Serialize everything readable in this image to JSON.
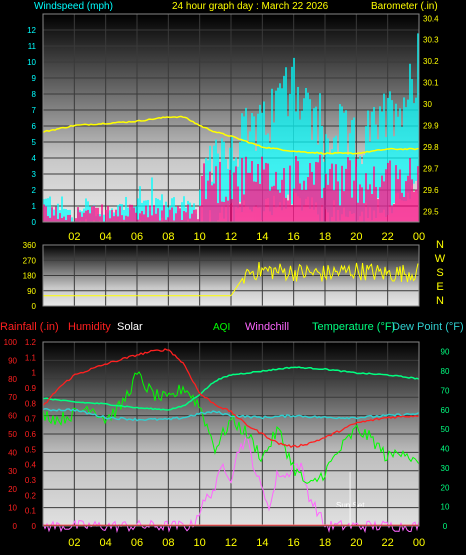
{
  "header": {
    "title": "24 hour graph day : March 22 2026",
    "windspeed_label": "Windspeed (mph)",
    "barometer_label": "Barometer (.in)"
  },
  "mid_labels": {
    "rainfall": "Rainfall (.in)",
    "humidity": "Humidity",
    "solar": "Solar",
    "aqi": "AQI",
    "windchill": "Windchill",
    "temperature": "Temperature (°F)",
    "dew_point": "Dew Point (°F)"
  },
  "annotations": {
    "sunset": "Sun Set"
  },
  "colors": {
    "windspeed": "#00ffff",
    "gust": "#ff0080",
    "barometer": "#ffff00",
    "direction": "#ffff00",
    "humidity": "#ff2020",
    "temperature": "#00ff80",
    "dew_point": "#30d0d0",
    "aqi": "#00ff00",
    "windchill": "#ff66ff",
    "rain": "#ff0000",
    "solar": "#ffffff"
  },
  "chart_data": [
    {
      "type": "line",
      "title": "24 hour graph day : March 22 2026",
      "xlabel": "",
      "x_ticks": [
        "02",
        "04",
        "06",
        "08",
        "10",
        "12",
        "14",
        "16",
        "18",
        "20",
        "22",
        "00"
      ],
      "ylabel": "Windspeed (mph)",
      "y_ticks": [
        0,
        1,
        2,
        3,
        4,
        5,
        6,
        7,
        8,
        9,
        10,
        11,
        12
      ],
      "ylim": [
        0,
        13
      ],
      "y2label": "Barometer (.in)",
      "y2_ticks": [
        "29.5",
        "29.6",
        "29.7",
        "29.8",
        "29.9",
        "30",
        "30.1",
        "30.2",
        "30.3",
        "30.4"
      ],
      "y2lim": [
        29.45,
        30.42
      ],
      "series": [
        {
          "name": "Windspeed (mph)",
          "x": [
            0,
            1,
            2,
            3,
            4,
            5,
            6,
            7,
            8,
            9,
            10,
            11,
            12,
            13,
            14,
            15,
            16,
            17,
            18,
            19,
            20,
            21,
            22,
            23,
            24
          ],
          "values": [
            1,
            1,
            0,
            1,
            0,
            1,
            1,
            1,
            1,
            1,
            0,
            4,
            4,
            5,
            5,
            7,
            8,
            6,
            4,
            5,
            4,
            5,
            6,
            7,
            9
          ]
        },
        {
          "name": "Barometer (.in)",
          "x": [
            0,
            2,
            4,
            6,
            8,
            9,
            10,
            11,
            12,
            14,
            16,
            18,
            20,
            22,
            24
          ],
          "values": [
            29.87,
            29.9,
            29.91,
            29.92,
            29.94,
            29.94,
            29.9,
            29.87,
            29.85,
            29.8,
            29.78,
            29.77,
            29.77,
            29.79,
            29.79
          ]
        }
      ]
    },
    {
      "type": "scatter",
      "title": "",
      "x_ticks": [],
      "ylabel": "",
      "y_ticks": [
        360,
        270,
        180,
        90,
        0
      ],
      "ylim": [
        0,
        360
      ],
      "y2_ticks": [
        "N",
        "W",
        "S",
        "E",
        "N"
      ],
      "series": [
        {
          "name": "",
          "x": [
            0,
            4,
            8,
            12,
            13,
            14,
            16,
            18,
            20,
            22,
            24
          ],
          "values": [
            60,
            60,
            60,
            60,
            200,
            210,
            200,
            190,
            210,
            190,
            200
          ]
        }
      ]
    },
    {
      "type": "line",
      "title": "",
      "x_ticks": [
        "02",
        "04",
        "06",
        "08",
        "10",
        "12",
        "14",
        "16",
        "18",
        "20",
        "22",
        "00"
      ],
      "ylabel": "Rainfall (.in)",
      "y_ticks": [
        0,
        10,
        20,
        30,
        40,
        50,
        60,
        70,
        80,
        90,
        100
      ],
      "ylim": [
        0,
        100
      ],
      "y_ticks_rain": [
        "0",
        "0.1",
        "0.2",
        "0.3",
        "0.4",
        "0.5",
        "0.6",
        "0.7",
        "0.8",
        "0.9",
        "1",
        "1.1",
        "1.2"
      ],
      "y2label": "Temperature (°F)",
      "y2_ticks": [
        0,
        10,
        20,
        30,
        40,
        50,
        60,
        70,
        80,
        90
      ],
      "y2lim": [
        0,
        95
      ],
      "series": [
        {
          "name": "Humidity",
          "axis": "left",
          "x": [
            0,
            1,
            2,
            4,
            6,
            7,
            8,
            9,
            10,
            11,
            12,
            13,
            14,
            15,
            16,
            17,
            18,
            19,
            20,
            22,
            24
          ],
          "values": [
            65,
            75,
            82,
            88,
            93,
            95,
            96,
            88,
            72,
            66,
            62,
            55,
            50,
            45,
            43,
            45,
            48,
            52,
            56,
            59,
            60
          ]
        },
        {
          "name": "Temperature (°F)",
          "axis": "right",
          "x": [
            0,
            2,
            4,
            6,
            8,
            9,
            10,
            11,
            12,
            14,
            16,
            18,
            20,
            22,
            24
          ],
          "values": [
            66,
            64,
            63,
            61,
            60,
            62,
            68,
            75,
            78,
            80,
            82,
            81,
            79,
            78,
            76
          ]
        },
        {
          "name": "Dew Point (°F)",
          "axis": "right",
          "x": [
            0,
            2,
            4,
            6,
            8,
            9,
            10,
            11,
            12,
            14,
            16,
            18,
            20,
            22,
            24
          ],
          "values": [
            60,
            60,
            56,
            55,
            55,
            56,
            58,
            59,
            57,
            56,
            57,
            56,
            56,
            57,
            58
          ]
        },
        {
          "name": "AQI",
          "axis": "right",
          "x": [
            0,
            1,
            2,
            3,
            4,
            5,
            6,
            7,
            8,
            9,
            10,
            11,
            12,
            13,
            14,
            15,
            16,
            17,
            18,
            19,
            20,
            21,
            22,
            23,
            24
          ],
          "values": [
            58,
            55,
            58,
            62,
            55,
            62,
            78,
            68,
            65,
            72,
            62,
            40,
            55,
            48,
            35,
            50,
            30,
            20,
            28,
            40,
            50,
            45,
            35,
            40,
            30
          ]
        },
        {
          "name": "Windchill",
          "axis": "right",
          "x": [
            0,
            9.5,
            10,
            10.5,
            11,
            11.5,
            12,
            12.5,
            13,
            13.5,
            14,
            14.5,
            15,
            15.5,
            16,
            16.5,
            17,
            17.5,
            18,
            24
          ],
          "values": [
            0,
            0,
            8,
            15,
            20,
            32,
            25,
            40,
            45,
            30,
            18,
            10,
            28,
            25,
            32,
            30,
            15,
            8,
            0,
            0
          ]
        },
        {
          "name": "Solar",
          "axis": "right",
          "x": [
            0,
            7.5,
            8,
            24
          ],
          "values": [
            0,
            0,
            1,
            0
          ]
        },
        {
          "name": "Rainfall (.in)",
          "axis": "left",
          "x": [
            0,
            24
          ],
          "values": [
            0,
            0
          ]
        }
      ]
    }
  ]
}
